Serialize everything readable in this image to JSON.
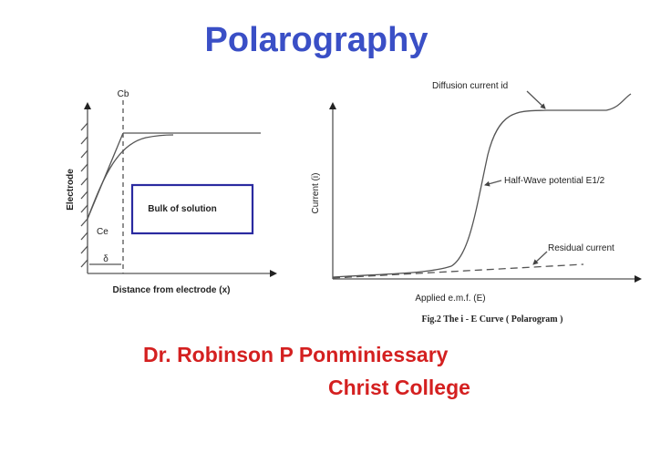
{
  "title": "Polarography",
  "left_figure": {
    "top_label": "Cb",
    "y_label": "Electrode",
    "bottom_label": "Ce",
    "delta_label": "δ",
    "box_label": "Bulk of solution",
    "x_label": "Distance from electrode (x)"
  },
  "right_figure": {
    "y_label": "Current (i)",
    "annotations": [
      "Diffusion current id",
      "Half-Wave potential E1/2",
      "Residual current"
    ],
    "x_label": "Applied e.m.f. (E)",
    "caption": "Fig.2 The i - E Curve ( Polarogram )"
  },
  "author": {
    "name": "Dr. Robinson P Ponminiessary",
    "college": "Christ College"
  }
}
